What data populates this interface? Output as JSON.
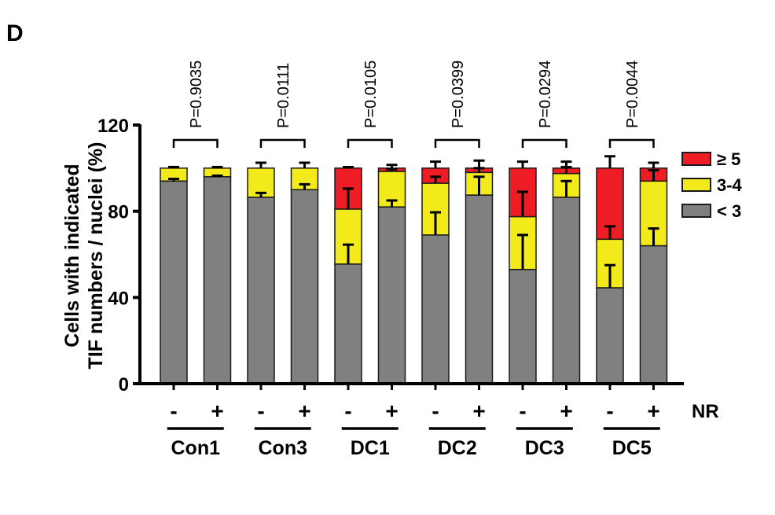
{
  "panel_label": "D",
  "chart_data": {
    "type": "bar",
    "stacked": true,
    "title": "",
    "xlabel": "",
    "ylabel_lines": [
      "Cells with indicated",
      "TIF numbers / nuclei (%)"
    ],
    "ylim": [
      0,
      120
    ],
    "yticks": [
      0,
      40,
      80,
      120
    ],
    "treatment_label": "NR",
    "groups": [
      "Con1",
      "Con3",
      "DC1",
      "DC2",
      "DC3",
      "DC5"
    ],
    "conditions": [
      "-",
      "+"
    ],
    "p_values": [
      "P=0.9035",
      "P=0.0111",
      "P=0.0105",
      "P=0.0399",
      "P=0.0294",
      "P=0.0044"
    ],
    "legend": {
      "placement": "right",
      "entries": [
        {
          "label": "≥ 5",
          "key": "ge5",
          "color": "#ee1c24"
        },
        {
          "label": "3-4",
          "key": "3to4",
          "color": "#f2ea1a"
        },
        {
          "label": "< 3",
          "key": "lt3",
          "color": "#808080"
        }
      ]
    },
    "bars": [
      {
        "group": "Con1",
        "nr": "-",
        "lt3": 94.0,
        "3to4": 6.0,
        "ge5": 0.0,
        "err": {
          "lt3": 1.0,
          "3to4": 0.5,
          "ge5": 0.5
        }
      },
      {
        "group": "Con1",
        "nr": "+",
        "lt3": 96.0,
        "3to4": 4.0,
        "ge5": 0.0,
        "err": {
          "lt3": 0.5,
          "3to4": 0.5,
          "ge5": 0.5
        }
      },
      {
        "group": "Con3",
        "nr": "-",
        "lt3": 86.5,
        "3to4": 13.5,
        "ge5": 0.0,
        "err": {
          "lt3": 2.0,
          "3to4": 2.5,
          "ge5": 0.0
        }
      },
      {
        "group": "Con3",
        "nr": "+",
        "lt3": 90.0,
        "3to4": 10.0,
        "ge5": 0.0,
        "err": {
          "lt3": 2.5,
          "3to4": 2.5,
          "ge5": 0.0
        }
      },
      {
        "group": "DC1",
        "nr": "-",
        "lt3": 55.5,
        "3to4": 25.5,
        "ge5": 19.0,
        "err": {
          "lt3": 9.0,
          "3to4": 9.5,
          "ge5": 0.5
        }
      },
      {
        "group": "DC1",
        "nr": "+",
        "lt3": 82.0,
        "3to4": 16.5,
        "ge5": 1.5,
        "err": {
          "lt3": 3.0,
          "3to4": 1.0,
          "ge5": 1.5
        }
      },
      {
        "group": "DC2",
        "nr": "-",
        "lt3": 69.0,
        "3to4": 24.0,
        "ge5": 7.0,
        "err": {
          "lt3": 10.5,
          "3to4": 3.0,
          "ge5": 3.0
        }
      },
      {
        "group": "DC2",
        "nr": "+",
        "lt3": 87.5,
        "3to4": 10.5,
        "ge5": 2.0,
        "err": {
          "lt3": 8.5,
          "3to4": 2.0,
          "ge5": 3.5
        }
      },
      {
        "group": "DC3",
        "nr": "-",
        "lt3": 53.0,
        "3to4": 24.5,
        "ge5": 22.5,
        "err": {
          "lt3": 16.0,
          "3to4": 11.5,
          "ge5": 3.0
        }
      },
      {
        "group": "DC3",
        "nr": "+",
        "lt3": 86.5,
        "3to4": 11.0,
        "ge5": 2.5,
        "err": {
          "lt3": 7.5,
          "3to4": 3.0,
          "ge5": 3.0
        }
      },
      {
        "group": "DC5",
        "nr": "-",
        "lt3": 44.5,
        "3to4": 22.5,
        "ge5": 33.0,
        "err": {
          "lt3": 10.5,
          "3to4": 6.0,
          "ge5": 5.5
        }
      },
      {
        "group": "DC5",
        "nr": "+",
        "lt3": 64.0,
        "3to4": 30.0,
        "ge5": 6.0,
        "err": {
          "lt3": 8.0,
          "3to4": 5.0,
          "ge5": 2.5
        }
      }
    ]
  }
}
